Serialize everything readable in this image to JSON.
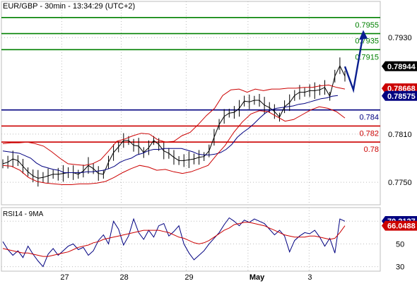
{
  "chart_data": {
    "type": "line",
    "title": "EUR/GBP - 30min - 13:34:29 (UTC+2)",
    "price_panel": {
      "ylim": [
        0.7722,
        0.7975
      ],
      "y_ticks": [
        {
          "value": 0.793,
          "label": "0.7930"
        },
        {
          "value": 0.781,
          "label": "0.7810"
        },
        {
          "value": 0.775,
          "label": "0.7750"
        }
      ],
      "current_price": {
        "value": 0.78944,
        "label": "0.78944",
        "color": "#000000"
      },
      "bollinger_badges": [
        {
          "value": 0.78668,
          "label": "0.78668",
          "color": "#cc0000"
        },
        {
          "value": 0.78575,
          "label": "0.78575",
          "color": "#000080"
        }
      ],
      "levels": [
        {
          "value": 0.7955,
          "label": "0.7955",
          "color": "#008000"
        },
        {
          "value": 0.7935,
          "label": "0.7935",
          "color": "#008000"
        },
        {
          "value": 0.7915,
          "label": "0.7915",
          "color": "#008000"
        },
        {
          "value": 0.784,
          "label": "0.784",
          "color": "#000080"
        },
        {
          "value": 0.782,
          "label": "0.782",
          "color": "#cc0000"
        },
        {
          "value": 0.78,
          "label": "0.78",
          "color": "#cc0000"
        }
      ],
      "forecast_path": [
        [
          0.7894,
          0.7865
        ],
        [
          0.7865,
          0.7935
        ]
      ],
      "series": [
        {
          "role": "price",
          "color": "#000000",
          "values": [
            0.7773,
            0.7775,
            0.7779,
            0.7777,
            0.777,
            0.7763,
            0.7758,
            0.7755,
            0.7756,
            0.7758,
            0.776,
            0.776,
            0.7761,
            0.7762,
            0.7762,
            0.776,
            0.7764,
            0.7771,
            0.7767,
            0.7761,
            0.776,
            0.7775,
            0.7787,
            0.7794,
            0.7802,
            0.7802,
            0.7796,
            0.7795,
            0.7787,
            0.7793,
            0.7802,
            0.7797,
            0.7789,
            0.7786,
            0.7781,
            0.7777,
            0.7777,
            0.7778,
            0.7779,
            0.7781,
            0.7782,
            0.7789,
            0.7806,
            0.7822,
            0.7832,
            0.7836,
            0.7837,
            0.7842,
            0.7851,
            0.785,
            0.7852,
            0.7852,
            0.7846,
            0.7843,
            0.7838,
            0.7831,
            0.7844,
            0.7849,
            0.7858,
            0.7862,
            0.7862,
            0.7864,
            0.7864,
            0.7865,
            0.7868,
            0.7857,
            0.7882,
            0.7895,
            0.7882
          ]
        },
        {
          "role": "ma",
          "color": "#000080",
          "values": [
            0.7789,
            0.7788,
            0.7787,
            0.7786,
            0.7783,
            0.778,
            0.7774,
            0.777,
            0.7768,
            0.7766,
            0.7765,
            0.7762,
            0.7762,
            0.7762,
            0.7762,
            0.7763,
            0.7763,
            0.7764,
            0.7765,
            0.7767,
            0.777,
            0.7775,
            0.7778,
            0.778,
            0.7784,
            0.7786,
            0.7789,
            0.7791,
            0.7791,
            0.7792,
            0.7792,
            0.7792,
            0.7792,
            0.779,
            0.7788,
            0.7785,
            0.7784,
            0.7784,
            0.7785,
            0.7787,
            0.7791,
            0.7797,
            0.7806,
            0.7812,
            0.7817,
            0.7823,
            0.783,
            0.7836,
            0.784,
            0.7842,
            0.7843,
            0.7844,
            0.7845,
            0.7847,
            0.7848,
            0.785,
            0.7852,
            0.7854,
            0.7855,
            0.7857,
            0.7858
          ]
        },
        {
          "role": "bollinger_upper",
          "color": "#cc0000",
          "values": [
            0.7798,
            0.7799,
            0.7799,
            0.78,
            0.7798,
            0.7795,
            0.7788,
            0.778,
            0.7773,
            0.7772,
            0.7771,
            0.7773,
            0.7778,
            0.7789,
            0.7801,
            0.7804,
            0.7808,
            0.7811,
            0.781,
            0.7803,
            0.78,
            0.7801,
            0.7808,
            0.7812,
            0.7822,
            0.7833,
            0.7842,
            0.7858,
            0.7865,
            0.7866,
            0.7862,
            0.7866,
            0.7864,
            0.7866,
            0.7866,
            0.7867,
            0.7867,
            0.7868,
            0.7868,
            0.787,
            0.7871,
            0.7868,
            0.7866
          ]
        },
        {
          "role": "bollinger_lower",
          "color": "#cc0000",
          "values": [
            0.7771,
            0.777,
            0.7765,
            0.7756,
            0.7751,
            0.7749,
            0.7748,
            0.7747,
            0.7747,
            0.7748,
            0.7748,
            0.7749,
            0.7751,
            0.7756,
            0.7762,
            0.7767,
            0.7771,
            0.7769,
            0.7765,
            0.7766,
            0.7763,
            0.7761,
            0.7763,
            0.7767,
            0.7771,
            0.7784,
            0.7796,
            0.7812,
            0.7825,
            0.7835,
            0.7839,
            0.7838,
            0.7832,
            0.7826,
            0.7828,
            0.7834,
            0.784,
            0.7844,
            0.7842,
            0.7838,
            0.783
          ]
        }
      ]
    },
    "rsi_panel": {
      "label": "RSI14 - 9MA",
      "ylim": [
        26,
        82
      ],
      "y_ticks": [
        {
          "value": 70,
          "label": "70"
        },
        {
          "value": 50,
          "label": "50"
        },
        {
          "value": 30,
          "label": "30"
        }
      ],
      "badges": [
        {
          "value": 70.2127,
          "label": "70.2127",
          "color": "#000080"
        },
        {
          "value": 66.0488,
          "label": "66.0488",
          "color": "#cc0000"
        }
      ],
      "series": [
        {
          "name": "RSI14",
          "color": "#000080",
          "values": [
            52,
            45,
            40,
            44,
            38,
            48,
            41,
            35,
            30,
            41,
            46,
            40,
            44,
            48,
            50,
            45,
            47,
            40,
            44,
            53,
            58,
            50,
            70,
            63,
            49,
            57,
            72,
            60,
            54,
            62,
            56,
            66,
            68,
            57,
            61,
            66,
            50,
            42,
            36,
            40,
            44,
            50,
            55,
            60,
            67,
            73,
            70,
            66,
            71,
            69,
            72,
            70,
            68,
            63,
            58,
            62,
            57,
            43,
            53,
            57,
            60,
            59,
            62,
            56,
            48,
            55,
            42,
            72,
            70
          ]
        },
        {
          "name": "9MA",
          "color": "#cc0000",
          "values": [
            46,
            45,
            44,
            43,
            42,
            42,
            41,
            40,
            39,
            39,
            40,
            41,
            42,
            43,
            45,
            47,
            48,
            49,
            51,
            52,
            54,
            55,
            56,
            57,
            58,
            59,
            60,
            61,
            62,
            62,
            62,
            62,
            61,
            60,
            58,
            56,
            55,
            53,
            51,
            50,
            51,
            53,
            56,
            59,
            62,
            64,
            67,
            68,
            69,
            69,
            68,
            67,
            66,
            64,
            62,
            60,
            58,
            57,
            56,
            56,
            56,
            57,
            57,
            56,
            55,
            54,
            55,
            60,
            66
          ]
        }
      ]
    },
    "x_tick_labels": [
      {
        "label": "27",
        "position": 0.1592
      },
      {
        "label": "28",
        "position": 0.3163
      },
      {
        "label": "29",
        "position": 0.4877
      },
      {
        "label": "May",
        "position": 0.6509
      },
      {
        "label": "3",
        "position": 0.8122
      }
    ],
    "grid": true,
    "legend": "none"
  }
}
